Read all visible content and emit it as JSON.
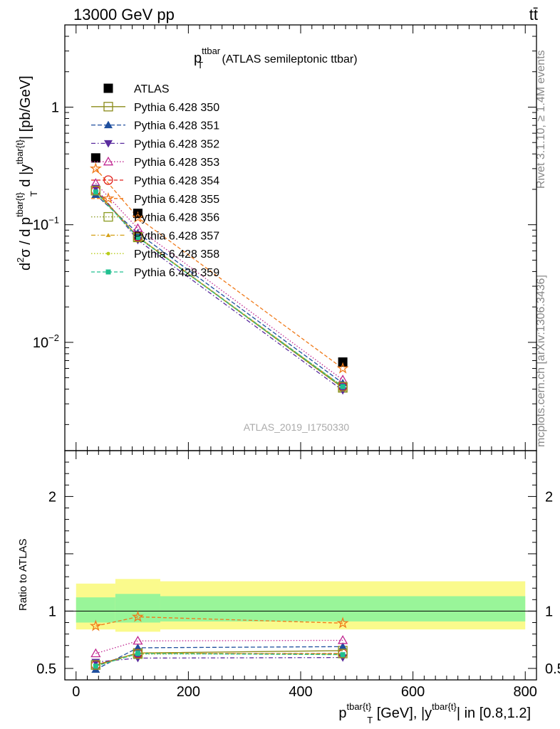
{
  "header": {
    "left": "13000 GeV pp",
    "right": "tt̄"
  },
  "side_text": {
    "rivet": "Rivet 3.1.10, ≥ 1.4M events",
    "mcplots": "mcplots.cern.ch [arXiv:1306.3436]"
  },
  "watermark": "ATLAS_2019_I1750330",
  "main_title": {
    "base": "p",
    "sup": "ttbar",
    "sub": "T",
    "rest": " (ATLAS semileptonic ttbar)"
  },
  "ylabel_top": {
    "a": "d",
    "a_sup": "2",
    "b": "σ / d p",
    "b_sup": "tbar{t}",
    "b_sub": "T",
    "c": " d |y",
    "c_sup": "tbar{t}",
    "d": "| [pb/GeV]"
  },
  "ylabel_bottom": "Ratio to ATLAS",
  "xlabel": {
    "a": "p",
    "a_sup": "tbar{t}",
    "a_sub": "T",
    "b": " [GeV], |y",
    "b_sup": "tbar{t}",
    "c": "| in [0.8,1.2]"
  },
  "chart_data": [
    {
      "type": "scatter",
      "panel": "main",
      "yscale": "log",
      "ylim": [
        0.0012,
        5
      ],
      "xlim": [
        -20,
        820
      ],
      "x": [
        35,
        110,
        475
      ],
      "y_ticks": [
        {
          "value": 1,
          "label": "1"
        },
        {
          "value": 0.1,
          "label": "10",
          "sup": "−1"
        },
        {
          "value": 0.01,
          "label": "10",
          "sup": "−2"
        }
      ],
      "series": [
        {
          "name": "ATLAS",
          "color": "#000000",
          "marker": "square-filled",
          "dash": "",
          "values": [
            0.37,
            0.125,
            0.0068
          ]
        },
        {
          "name": "Pythia 6.428 350",
          "color": "#8b8b1a",
          "marker": "square-open",
          "dash": "",
          "values": [
            0.195,
            0.079,
            0.0041
          ]
        },
        {
          "name": "Pythia 6.428 351",
          "color": "#1f4f9e",
          "marker": "triangle-up-filled",
          "dash": "6,3",
          "values": [
            0.18,
            0.085,
            0.0045
          ]
        },
        {
          "name": "Pythia 6.428 352",
          "color": "#5a2c9e",
          "marker": "triangle-down-filled",
          "dash": "6,3,1.5,3",
          "values": [
            0.205,
            0.074,
            0.0039
          ]
        },
        {
          "name": "Pythia 6.428 353",
          "color": "#c02690",
          "marker": "triangle-up-open",
          "dash": "1.5,2.5",
          "values": [
            0.225,
            0.093,
            0.0048
          ]
        },
        {
          "name": "Pythia 6.428 354",
          "color": "#e0201b",
          "marker": "circle-open",
          "dash": "5,3",
          "values": [
            0.195,
            0.079,
            0.0042
          ]
        },
        {
          "name": "Pythia 6.428 355",
          "color": "#f07a1a",
          "marker": "star-open",
          "dash": "5,3",
          "values": [
            0.3,
            0.115,
            0.006
          ]
        },
        {
          "name": "Pythia 6.428 356",
          "color": "#8a9a20",
          "marker": "square-open",
          "dash": "1.5,2.5",
          "values": [
            0.195,
            0.078,
            0.0042
          ]
        },
        {
          "name": "Pythia 6.428 357",
          "color": "#d4a017",
          "marker": "tri-small",
          "dash": "6,3,1.5,3",
          "values": [
            0.19,
            0.079,
            0.0042
          ]
        },
        {
          "name": "Pythia 6.428 358",
          "color": "#b8cc1a",
          "marker": "dot-small",
          "dash": "1.5,2.5",
          "values": [
            0.19,
            0.079,
            0.0042
          ]
        },
        {
          "name": "Pythia 6.428 359",
          "color": "#20c090",
          "marker": "square-small",
          "dash": "5,3",
          "values": [
            0.19,
            0.078,
            0.0042
          ]
        }
      ]
    },
    {
      "type": "scatter",
      "panel": "ratio",
      "ylim": [
        0.4,
        2.4
      ],
      "xlim": [
        -20,
        820
      ],
      "x": [
        35,
        110,
        475
      ],
      "x_ticks": [
        0,
        200,
        400,
        600,
        800
      ],
      "y_ticks": [
        0.5,
        1,
        2
      ],
      "bands": {
        "edges": [
          0,
          70,
          150,
          800
        ],
        "inner": [
          [
            0.9,
            1.12
          ],
          [
            0.9,
            1.15
          ],
          [
            0.91,
            1.13
          ]
        ],
        "outer": [
          [
            0.84,
            1.24
          ],
          [
            0.82,
            1.28
          ],
          [
            0.84,
            1.26
          ]
        ],
        "inner_color": "#99f599",
        "outer_color": "#fafa8c"
      },
      "series": [
        {
          "name": "Pythia 6.428 350",
          "values": [
            0.53,
            0.635,
            0.655
          ]
        },
        {
          "name": "Pythia 6.428 351",
          "values": [
            0.49,
            0.68,
            0.69
          ]
        },
        {
          "name": "Pythia 6.428 352",
          "values": [
            0.555,
            0.59,
            0.595
          ]
        },
        {
          "name": "Pythia 6.428 353",
          "values": [
            0.63,
            0.74,
            0.745
          ]
        },
        {
          "name": "Pythia 6.428 354",
          "values": [
            0.53,
            0.63,
            0.63
          ]
        },
        {
          "name": "Pythia 6.428 355",
          "values": [
            0.87,
            0.95,
            0.895
          ]
        },
        {
          "name": "Pythia 6.428 356",
          "values": [
            0.53,
            0.625,
            0.63
          ]
        },
        {
          "name": "Pythia 6.428 357",
          "values": [
            0.52,
            0.635,
            0.625
          ]
        },
        {
          "name": "Pythia 6.428 358",
          "values": [
            0.52,
            0.63,
            0.62
          ]
        },
        {
          "name": "Pythia 6.428 359",
          "values": [
            0.52,
            0.63,
            0.62
          ]
        }
      ]
    }
  ]
}
